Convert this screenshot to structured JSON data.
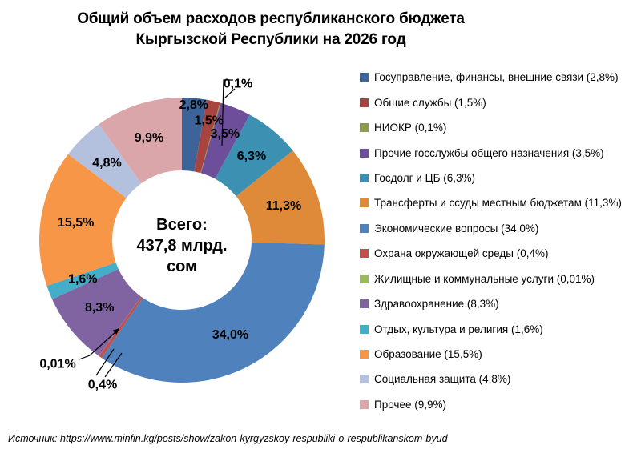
{
  "title": {
    "line1": "Общий объем расходов республиканского бюджета",
    "line2": "Кыргызской Республики на 2026 год"
  },
  "center": {
    "line1": "Всего:",
    "line2": "437,8 млрд.",
    "line3": "сом"
  },
  "source": "Источник: https://www.minfin.kg/posts/show/zakon-kyrgyzskoy-respubliki-o-respublikanskom-byud",
  "chart_data": {
    "type": "pie",
    "donut": true,
    "title": "Общий объем расходов республиканского бюджета Кыргызской Республики на 2026 год",
    "total_label": "Всего: 437,8 млрд. сом",
    "legend_position": "right",
    "categories": [
      "Госуправление, финансы, внешние связи",
      "Общие службы",
      "НИОКР",
      "Прочие госслужбы общего назначения",
      "Госдолг и ЦБ",
      "Трансферты и ссуды местным бюджетам",
      "Экономические вопросы",
      "Охрана окружающей среды",
      "Жилищные и коммунальные услуги",
      "Здравоохранение",
      "Отдых, культура и религия",
      "Образование",
      "Социальная защита",
      "Прочее"
    ],
    "values": [
      2.8,
      1.5,
      0.1,
      3.5,
      6.3,
      11.3,
      34.0,
      0.4,
      0.01,
      8.3,
      1.6,
      15.5,
      4.8,
      9.9
    ],
    "slice_labels": [
      "2,8%",
      "1,5%",
      "0,1%",
      "3,5%",
      "6,3%",
      "11,3%",
      "34,0%",
      "0,4%",
      "0,01%",
      "8,3%",
      "1,6%",
      "15,5%",
      "4,8%",
      "9,9%"
    ],
    "legend_labels": [
      "Госуправление, финансы, внешние связи (2,8%)",
      "Общие службы (1,5%)",
      "НИОКР (0,1%)",
      "Прочие госслужбы общего назначения (3,5%)",
      "Госдолг и ЦБ (6,3%)",
      "Трансферты и ссуды местным бюджетам (11,3%)",
      "Экономические вопросы (34,0%)",
      "Охрана окружающей среды (0,4%)",
      "Жилищные и коммунальные услуги (0,01%)",
      "Здравоохранение (8,3%)",
      "Отдых, культура и религия (1,6%)",
      "Образование (15,5%)",
      "Социальная защита (4,8%)",
      "Прочее (9,9%)"
    ],
    "colors": [
      "#3C6498",
      "#A84440",
      "#8E9A4D",
      "#6C4E9B",
      "#3C90B2",
      "#DE8A39",
      "#4F81BD",
      "#C0504D",
      "#9BBB59",
      "#8064A2",
      "#44ADC7",
      "#F79646",
      "#B3C1DE",
      "#DBA6AA"
    ]
  }
}
